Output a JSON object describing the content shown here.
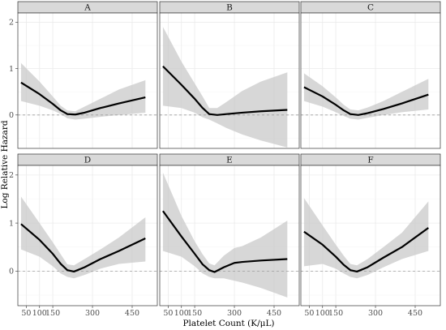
{
  "chart_data": {
    "type": "line",
    "ylabel": "Log Relative Hazard",
    "xlabel": "Platelet Count (K/μL)",
    "x_tick_labels": [
      "50",
      "100",
      "150",
      "300",
      "450"
    ],
    "x_tick_values": [
      50,
      100,
      150,
      300,
      450
    ],
    "y_ticks": [
      0,
      1,
      2
    ],
    "ylim": [
      -0.72,
      2.2
    ],
    "xlim": [
      18,
      545
    ],
    "reference_line_y": 0,
    "panels": [
      {
        "label": "A",
        "x": [
          30,
          100,
          150,
          180,
          205,
          235,
          270,
          330,
          400,
          500
        ],
        "y": [
          0.7,
          0.45,
          0.24,
          0.1,
          0.02,
          0.01,
          0.05,
          0.15,
          0.25,
          0.38
        ],
        "lower": [
          0.3,
          0.2,
          0.1,
          0.02,
          -0.07,
          -0.1,
          -0.08,
          -0.04,
          0.0,
          0.05
        ],
        "upper": [
          1.12,
          0.72,
          0.4,
          0.2,
          0.1,
          0.08,
          0.18,
          0.35,
          0.55,
          0.75
        ]
      },
      {
        "label": "B",
        "x": [
          30,
          100,
          150,
          180,
          205,
          235,
          270,
          330,
          400,
          500
        ],
        "y": [
          1.05,
          0.65,
          0.35,
          0.15,
          0.02,
          0.0,
          0.02,
          0.05,
          0.08,
          0.11
        ],
        "lower": [
          0.2,
          0.15,
          0.05,
          -0.05,
          -0.1,
          -0.18,
          -0.28,
          -0.42,
          -0.55,
          -0.7
        ],
        "upper": [
          1.9,
          1.15,
          0.68,
          0.4,
          0.15,
          0.15,
          0.28,
          0.52,
          0.72,
          0.92
        ]
      },
      {
        "label": "C",
        "x": [
          30,
          100,
          150,
          180,
          205,
          235,
          270,
          330,
          400,
          500
        ],
        "y": [
          0.6,
          0.4,
          0.22,
          0.1,
          0.02,
          0.0,
          0.04,
          0.13,
          0.25,
          0.44
        ],
        "lower": [
          0.3,
          0.18,
          0.06,
          -0.02,
          -0.08,
          -0.1,
          -0.06,
          0.0,
          0.06,
          0.12
        ],
        "upper": [
          0.9,
          0.62,
          0.38,
          0.22,
          0.12,
          0.1,
          0.16,
          0.3,
          0.5,
          0.78
        ]
      },
      {
        "label": "D",
        "x": [
          30,
          100,
          150,
          180,
          205,
          230,
          270,
          330,
          400,
          500
        ],
        "y": [
          0.98,
          0.65,
          0.36,
          0.15,
          0.02,
          -0.01,
          0.08,
          0.25,
          0.42,
          0.68
        ],
        "lower": [
          0.45,
          0.3,
          0.1,
          -0.05,
          -0.12,
          -0.15,
          -0.08,
          0.05,
          0.15,
          0.2
        ],
        "upper": [
          1.55,
          1.0,
          0.6,
          0.35,
          0.14,
          0.12,
          0.25,
          0.45,
          0.7,
          1.12
        ]
      },
      {
        "label": "E",
        "x": [
          30,
          100,
          150,
          180,
          205,
          225,
          260,
          300,
          330,
          400,
          500
        ],
        "y": [
          1.25,
          0.72,
          0.36,
          0.14,
          0.02,
          -0.02,
          0.08,
          0.17,
          0.19,
          0.22,
          0.25
        ],
        "lower": [
          0.42,
          0.3,
          0.1,
          -0.05,
          -0.12,
          -0.15,
          -0.15,
          -0.2,
          -0.24,
          -0.35,
          -0.55
        ],
        "upper": [
          2.05,
          1.15,
          0.62,
          0.35,
          0.16,
          0.12,
          0.32,
          0.48,
          0.52,
          0.7,
          1.05
        ]
      },
      {
        "label": "F",
        "x": [
          30,
          100,
          150,
          180,
          205,
          230,
          270,
          330,
          400,
          500
        ],
        "y": [
          0.82,
          0.55,
          0.3,
          0.13,
          0.02,
          -0.01,
          0.08,
          0.28,
          0.5,
          0.9
        ],
        "lower": [
          0.1,
          0.15,
          0.05,
          -0.05,
          -0.12,
          -0.15,
          -0.08,
          0.08,
          0.25,
          0.42
        ],
        "upper": [
          1.52,
          0.95,
          0.55,
          0.32,
          0.15,
          0.12,
          0.25,
          0.5,
          0.8,
          1.45
        ]
      }
    ]
  }
}
